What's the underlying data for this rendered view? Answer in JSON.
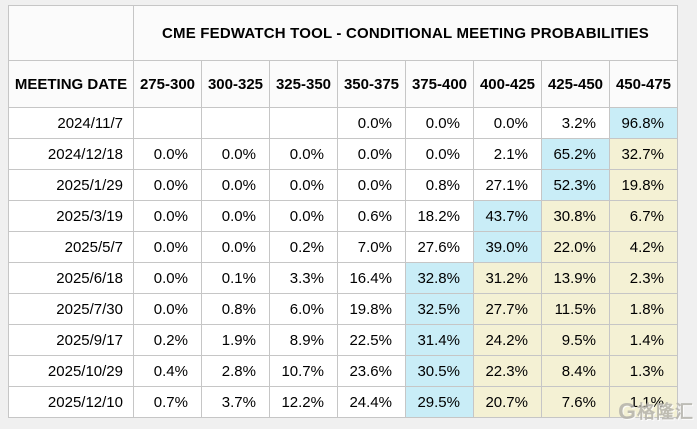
{
  "page": {
    "background": "#f0f0f0"
  },
  "chart_data": {
    "type": "table",
    "title": "CME FEDWATCH TOOL - CONDITIONAL MEETING PROBABILITIES",
    "columns": [
      "MEETING DATE",
      "275-300",
      "300-325",
      "325-350",
      "350-375",
      "375-400",
      "400-425",
      "425-450",
      "450-475"
    ],
    "rows": [
      {
        "date": "2024/11/7",
        "values": [
          "",
          "",
          "",
          "0.0%",
          "0.0%",
          "0.0%",
          "3.2%",
          "96.8%"
        ],
        "highlights": [
          "",
          "",
          "",
          "",
          "",
          "",
          "",
          "blue"
        ]
      },
      {
        "date": "2024/12/18",
        "values": [
          "0.0%",
          "0.0%",
          "0.0%",
          "0.0%",
          "0.0%",
          "2.1%",
          "65.2%",
          "32.7%"
        ],
        "highlights": [
          "",
          "",
          "",
          "",
          "",
          "",
          "blue",
          "yellow"
        ]
      },
      {
        "date": "2025/1/29",
        "values": [
          "0.0%",
          "0.0%",
          "0.0%",
          "0.0%",
          "0.8%",
          "27.1%",
          "52.3%",
          "19.8%"
        ],
        "highlights": [
          "",
          "",
          "",
          "",
          "",
          "",
          "blue",
          "yellow"
        ]
      },
      {
        "date": "2025/3/19",
        "values": [
          "0.0%",
          "0.0%",
          "0.0%",
          "0.6%",
          "18.2%",
          "43.7%",
          "30.8%",
          "6.7%"
        ],
        "highlights": [
          "",
          "",
          "",
          "",
          "",
          "blue",
          "yellow",
          "yellow"
        ]
      },
      {
        "date": "2025/5/7",
        "values": [
          "0.0%",
          "0.0%",
          "0.2%",
          "7.0%",
          "27.6%",
          "39.0%",
          "22.0%",
          "4.2%"
        ],
        "highlights": [
          "",
          "",
          "",
          "",
          "",
          "blue",
          "yellow",
          "yellow"
        ]
      },
      {
        "date": "2025/6/18",
        "values": [
          "0.0%",
          "0.1%",
          "3.3%",
          "16.4%",
          "32.8%",
          "31.2%",
          "13.9%",
          "2.3%"
        ],
        "highlights": [
          "",
          "",
          "",
          "",
          "blue",
          "yellow",
          "yellow",
          "yellow"
        ]
      },
      {
        "date": "2025/7/30",
        "values": [
          "0.0%",
          "0.8%",
          "6.0%",
          "19.8%",
          "32.5%",
          "27.7%",
          "11.5%",
          "1.8%"
        ],
        "highlights": [
          "",
          "",
          "",
          "",
          "blue",
          "yellow",
          "yellow",
          "yellow"
        ]
      },
      {
        "date": "2025/9/17",
        "values": [
          "0.2%",
          "1.9%",
          "8.9%",
          "22.5%",
          "31.4%",
          "24.2%",
          "9.5%",
          "1.4%"
        ],
        "highlights": [
          "",
          "",
          "",
          "",
          "blue",
          "yellow",
          "yellow",
          "yellow"
        ]
      },
      {
        "date": "2025/10/29",
        "values": [
          "0.4%",
          "2.8%",
          "10.7%",
          "23.6%",
          "30.5%",
          "22.3%",
          "8.4%",
          "1.3%"
        ],
        "highlights": [
          "",
          "",
          "",
          "",
          "blue",
          "yellow",
          "yellow",
          "yellow"
        ]
      },
      {
        "date": "2025/12/10",
        "values": [
          "0.7%",
          "3.7%",
          "12.2%",
          "24.4%",
          "29.5%",
          "20.7%",
          "7.6%",
          "1.1%"
        ],
        "highlights": [
          "",
          "",
          "",
          "",
          "blue",
          "yellow",
          "yellow",
          "yellow"
        ]
      }
    ],
    "layout_hints": {
      "highlight_meaning": "blue = highest probability in row, yellow = ranges above the highlighted rate",
      "grid": true
    },
    "colors": {
      "highlight_blue": "#c9edf7",
      "highlight_yellow": "#f4f1d4",
      "cell_background": "#ffffff",
      "header_background": "#fbfbfb",
      "border": "#c6c6c6",
      "page_background": "#f0f0f0",
      "text": "#000000"
    }
  },
  "watermark": {
    "logo": "G",
    "text": "格隆汇"
  }
}
